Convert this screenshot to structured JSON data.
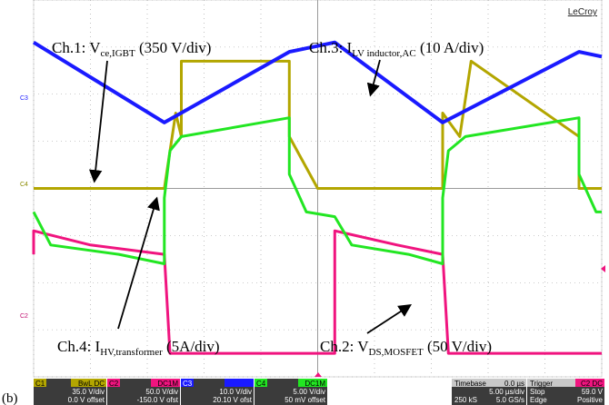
{
  "brand": "LeCroy",
  "figure_label": "(b)",
  "channel_tags": {
    "c1": "C1",
    "c2": "C2",
    "c3": "C3",
    "c4": "C4"
  },
  "annotations": {
    "ch1": {
      "pre": "Ch.1: V",
      "sub": "ce,IGBT",
      "post": " (350 V/div)"
    },
    "ch2": {
      "pre": "Ch.2: V",
      "sub": "DS,MOSFET",
      "post": " (50 V/div)"
    },
    "ch3": {
      "pre": "Ch.3: I",
      "sub": "LV inductor,AC",
      "post": " (10 A/div)"
    },
    "ch4": {
      "pre": "Ch.4: I",
      "sub": "HV,transformer",
      "post": " (5A/div)"
    }
  },
  "info_panels": {
    "c1": {
      "name": "C1",
      "coupling": "BwL DC",
      "scale": "35.0 V/div",
      "offset": "0.0 V offset"
    },
    "c2": {
      "name": "C2",
      "coupling": "DC1M",
      "scale": "50.0 V/div",
      "offset": "-150.0 V ofst"
    },
    "c3": {
      "name": "C3",
      "coupling": "",
      "scale": "10.0 V/div",
      "offset": "20.10 V ofst"
    },
    "c4": {
      "name": "C4",
      "coupling": "DC1M",
      "scale": "5.00 V/div",
      "offset": "50 mV offset"
    }
  },
  "timebase": {
    "label": "Timebase",
    "delay": "0.0 µs",
    "div": "5.00 µs/div",
    "samples": "250 kS",
    "rate": "5.0 GS/s"
  },
  "trigger": {
    "label": "Trigger",
    "ch": "C2 DC",
    "mode": "Stop",
    "level": "59.0 V",
    "type": "Edge",
    "slope": "Positive"
  },
  "colors": {
    "ch1": "#b3a600",
    "ch2": "#f0147f",
    "ch3": "#1a1aff",
    "ch4": "#22e622",
    "grid": "#9a9a9a",
    "panel_bg": "#3b3b3b"
  },
  "chart_data": {
    "type": "line",
    "x_unit": "div",
    "y_unit": "div",
    "xlim": [
      0,
      10
    ],
    "ylim": [
      -4,
      4
    ],
    "grid": true,
    "series": [
      {
        "name": "Ch.1: Vce,IGBT",
        "color_key": "ch1",
        "x": [
          0,
          2.3,
          2.3,
          2.5,
          2.6,
          2.6,
          4.5,
          4.5,
          5.0,
          5.3,
          7.2,
          7.2,
          7.5,
          7.7,
          7.7,
          9.6,
          9.6,
          10
        ],
        "y": [
          0,
          0,
          0,
          1.6,
          1.1,
          2.7,
          2.7,
          1.1,
          0,
          0,
          0,
          1.6,
          1.1,
          2.7,
          2.7,
          1.1,
          0,
          0
        ]
      },
      {
        "name": "Ch.2: VDS,MOSFET",
        "color_key": "ch2",
        "x": [
          0,
          0.0,
          1.0,
          2.3,
          2.3,
          2.4,
          4.5,
          5.3,
          5.3,
          6.4,
          7.2,
          7.2,
          7.3,
          9.6,
          10
        ],
        "y": [
          -1.4,
          -0.9,
          -1.2,
          -1.4,
          -1.4,
          -3.5,
          -3.5,
          -3.5,
          -0.9,
          -1.2,
          -1.4,
          -1.4,
          -3.5,
          -3.5,
          -3.5
        ]
      },
      {
        "name": "Ch.3: ILV inductor,AC",
        "color_key": "ch3",
        "x": [
          0,
          2.3,
          4.5,
          5.3,
          7.2,
          9.6,
          10
        ],
        "y": [
          3.1,
          1.4,
          2.9,
          3.1,
          1.4,
          2.9,
          2.8
        ]
      },
      {
        "name": "Ch.4: IHV,transformer",
        "color_key": "ch4",
        "x": [
          0,
          0.3,
          1.5,
          2.3,
          2.3,
          2.4,
          2.6,
          4.5,
          4.5,
          4.8,
          5.3,
          5.6,
          6.6,
          7.2,
          7.2,
          7.3,
          7.6,
          9.6,
          9.6,
          9.9,
          10
        ],
        "y": [
          -0.5,
          -1.2,
          -1.4,
          -1.6,
          -0.2,
          0.8,
          1.1,
          1.5,
          0.3,
          -0.5,
          -0.6,
          -1.2,
          -1.4,
          -1.6,
          -0.2,
          0.8,
          1.1,
          1.5,
          0.3,
          -0.5,
          -0.5
        ]
      }
    ]
  }
}
